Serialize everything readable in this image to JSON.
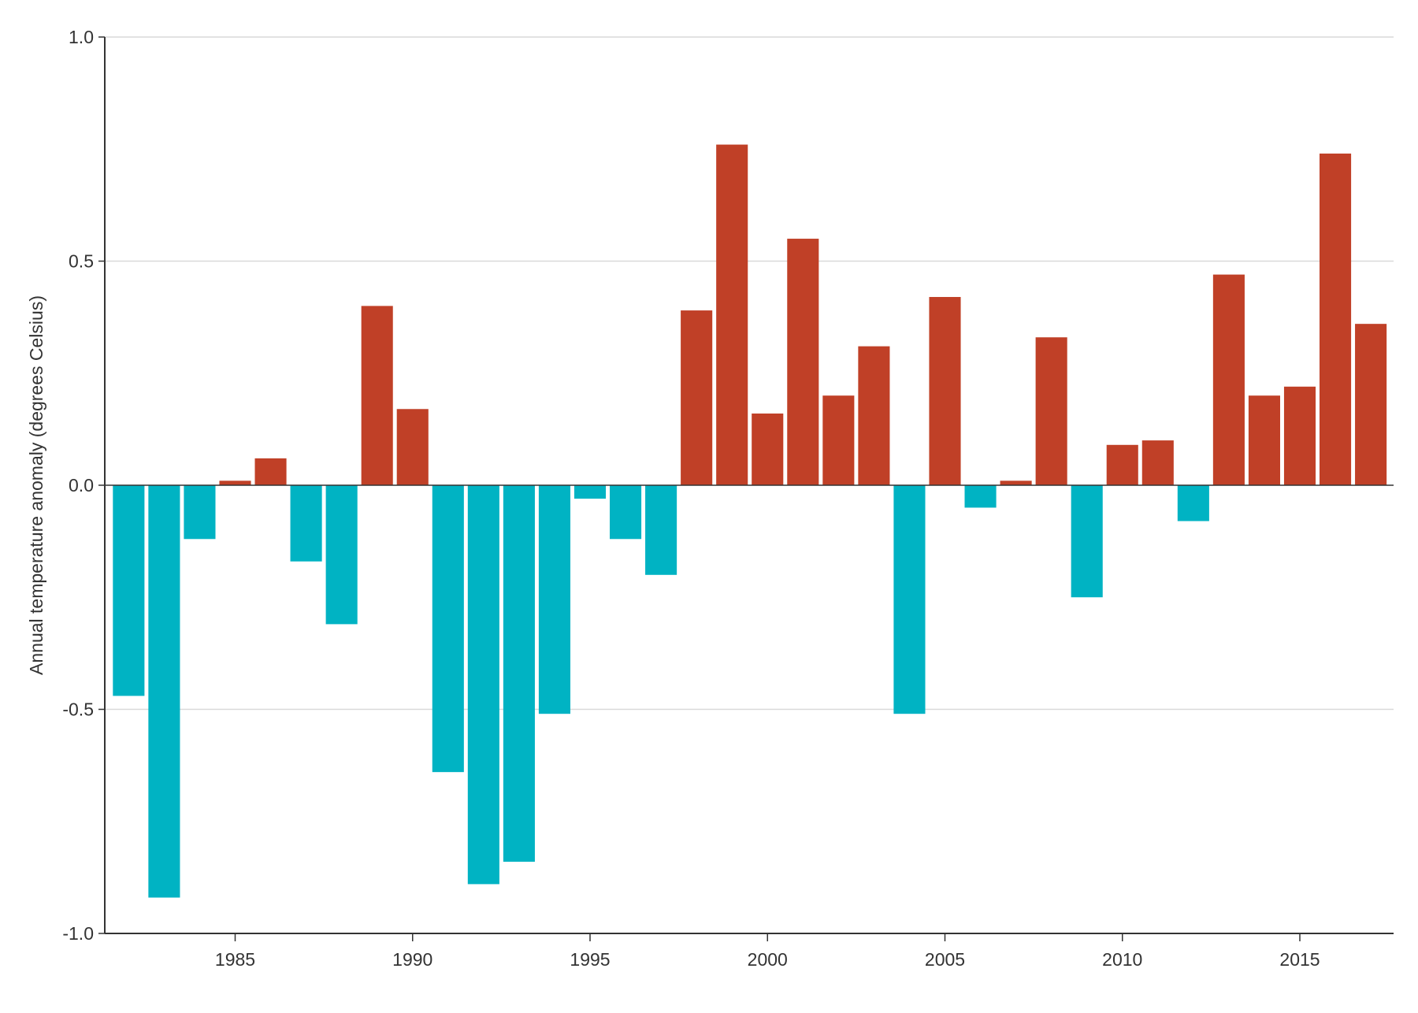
{
  "chart_data": {
    "type": "bar",
    "title": "",
    "xlabel": "",
    "ylabel": "Annual temperature anomaly (degrees Celsius)",
    "ylim": [
      -1.0,
      1.0
    ],
    "yticks": [
      "1.0",
      "0.5",
      "0.0",
      "-0.5",
      "-1.0"
    ],
    "ytick_values": [
      1.0,
      0.5,
      0.0,
      -0.5,
      -1.0
    ],
    "xticks": [
      "1985",
      "1990",
      "1995",
      "2000",
      "2005",
      "2010",
      "2015"
    ],
    "grid": "horizontal",
    "colors": {
      "positive": "#c04027",
      "negative": "#00b3c3"
    },
    "categories": [
      1982,
      1983,
      1984,
      1985,
      1986,
      1987,
      1988,
      1989,
      1990,
      1991,
      1992,
      1993,
      1994,
      1995,
      1996,
      1997,
      1998,
      1999,
      2000,
      2001,
      2002,
      2003,
      2004,
      2005,
      2006,
      2007,
      2008,
      2009,
      2010,
      2011,
      2012,
      2013,
      2014,
      2015,
      2016,
      2017
    ],
    "values": [
      -0.47,
      -0.92,
      -0.12,
      0.01,
      0.06,
      -0.17,
      -0.31,
      0.4,
      0.17,
      -0.64,
      -0.89,
      -0.84,
      -0.51,
      -0.03,
      -0.12,
      -0.2,
      0.39,
      0.76,
      0.16,
      0.55,
      0.2,
      0.31,
      -0.51,
      0.42,
      -0.05,
      0.01,
      0.33,
      -0.25,
      0.09,
      0.1,
      -0.08,
      0.47,
      0.2,
      0.22,
      0.74,
      0.36
    ]
  }
}
